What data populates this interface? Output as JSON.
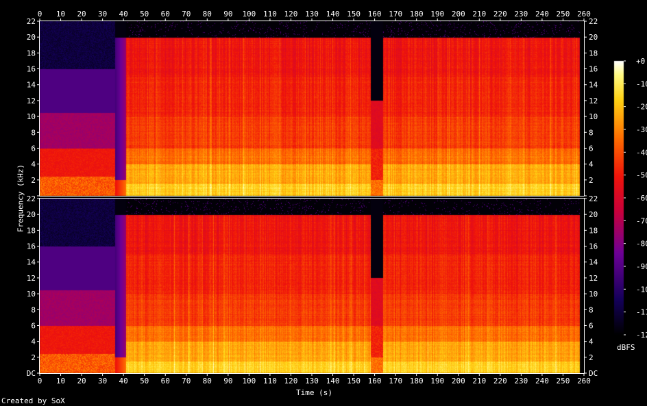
{
  "chart_data": {
    "type": "heatmap",
    "xlabel": "Time (s)",
    "ylabel": "Frequency (kHz)",
    "x_ticks": [
      0,
      10,
      20,
      30,
      40,
      50,
      60,
      70,
      80,
      90,
      100,
      110,
      120,
      130,
      140,
      150,
      160,
      170,
      180,
      190,
      200,
      210,
      220,
      230,
      240,
      250,
      260
    ],
    "xlim": [
      0,
      260
    ],
    "channels": [
      {
        "ylim": [
          0,
          22
        ],
        "y_ticks": [
          "DC",
          "2",
          "4",
          "6",
          "8",
          "10",
          "12",
          "14",
          "16",
          "18",
          "20",
          "22"
        ]
      },
      {
        "ylim": [
          0,
          22
        ],
        "y_ticks": [
          "DC",
          "2",
          "4",
          "6",
          "8",
          "10",
          "12",
          "14",
          "16",
          "18",
          "20",
          "22"
        ]
      }
    ],
    "colorbar": {
      "label": "dBFS",
      "range": [
        -120,
        0
      ],
      "ticks": [
        "+0",
        "-10",
        "-20",
        "-30",
        "-40",
        "-50",
        "-60",
        "-70",
        "-80",
        "-90",
        "-100",
        "-110",
        "-120"
      ]
    },
    "segments": [
      {
        "start": 0,
        "end": 36,
        "cutoff_khz": 16,
        "level": "quiet"
      },
      {
        "start": 36,
        "end": 41,
        "cutoff_khz": 20,
        "level": "fade-in"
      },
      {
        "start": 41,
        "end": 158,
        "cutoff_khz": 20,
        "level": "loud"
      },
      {
        "start": 158,
        "end": 164,
        "cutoff_khz": 12,
        "level": "gap"
      },
      {
        "start": 164,
        "end": 258,
        "cutoff_khz": 20,
        "level": "loud"
      }
    ]
  },
  "footer": {
    "credit": "Created by SoX"
  }
}
